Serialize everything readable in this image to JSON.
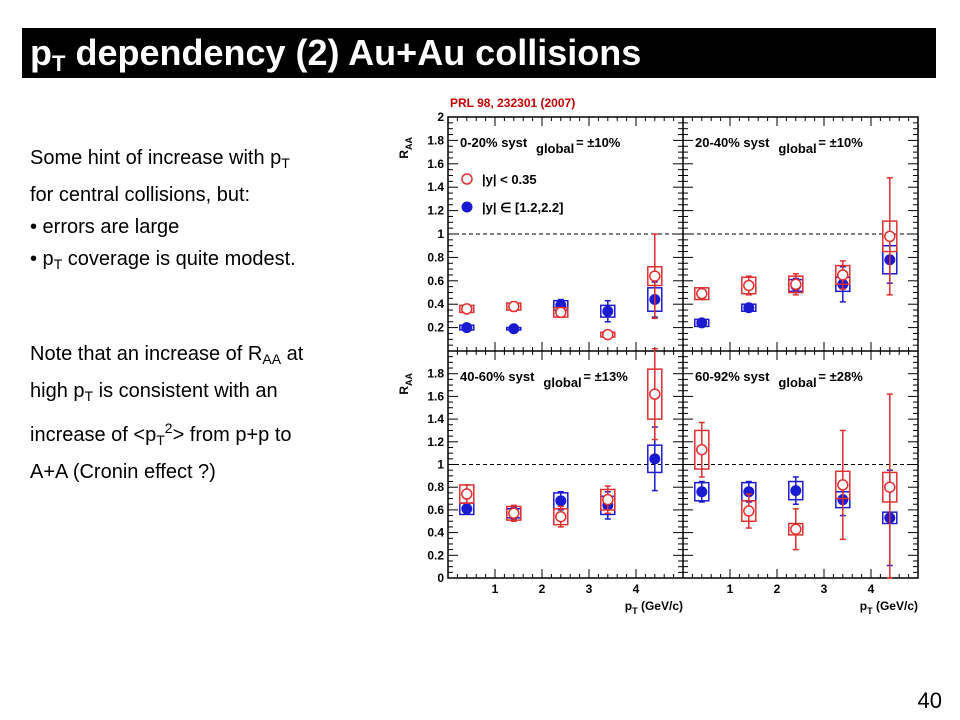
{
  "slide": {
    "title_main": "p",
    "title_sub": "T",
    "title_rest": " dependency (2) Au+Au collisions",
    "page_number": "40",
    "reference": "PRL 98, 232301 (2007)"
  },
  "text1": {
    "l1a": "Some hint of increase with p",
    "l1s": "T",
    "l2": "for central collisions, but:",
    "l3": "• errors are large",
    "l4a": "• p",
    "l4s": "T",
    "l4b": " coverage is quite modest."
  },
  "text2": {
    "l1a": "Note that an increase of R",
    "l1s": "AA",
    "l1b": " at",
    "l2a": "high p",
    "l2s": "T",
    "l2b": " is consistent with an",
    "l3a": "increase of <p",
    "l3s": "T",
    "l3p": "2",
    "l3b": "> from p+p to",
    "l4": "A+A (Cronin effect ?)"
  },
  "chart_data": {
    "type": "scatter",
    "ylabel_main": "R",
    "ylabel_sub": "AA",
    "xlabel_main": "p",
    "xlabel_sub": "T",
    "xlabel_rest": " (GeV/c)",
    "x_ticks": [
      "1",
      "2",
      "3",
      "4"
    ],
    "y_ticks_top": [
      "0.2",
      "0.4",
      "0.6",
      "0.8",
      "1",
      "1.2",
      "1.4",
      "1.6",
      "1.8",
      "2"
    ],
    "y_ticks_bottom": [
      "0",
      "0.2",
      "0.4",
      "0.6",
      "0.8",
      "1",
      "1.2",
      "1.4",
      "1.6",
      "1.8"
    ],
    "xlim": [
      0,
      5
    ],
    "ylim": [
      0,
      2.0
    ],
    "reference_line": 1,
    "legend": {
      "open": "|y| < 0.35",
      "filled": "|y| ∈ [1.2,2.2]"
    },
    "colors": {
      "open": "#e03030",
      "filled": "#1a1ad0",
      "frame": "#000000"
    },
    "panels": [
      {
        "label_a": "0-20% syst",
        "label_sub": "global",
        "label_b": "= ±10%",
        "show_legend": true,
        "open": [
          {
            "x": 0.4,
            "y": 0.36,
            "err": 0.03,
            "sys": 0.03
          },
          {
            "x": 1.4,
            "y": 0.38,
            "err": 0.04,
            "sys": 0.03
          },
          {
            "x": 2.4,
            "y": 0.33,
            "err": 0.04,
            "sys": 0.04
          },
          {
            "x": 3.4,
            "y": 0.14,
            "err": 0.03,
            "sys": 0.02
          },
          {
            "x": 4.4,
            "y": 0.64,
            "err": 0.36,
            "sys": 0.08
          }
        ],
        "filled": [
          {
            "x": 0.4,
            "y": 0.2,
            "err": 0.03,
            "sys": 0.02
          },
          {
            "x": 1.4,
            "y": 0.19,
            "err": 0.01,
            "sys": 0.01
          },
          {
            "x": 2.4,
            "y": 0.39,
            "err": 0.05,
            "sys": 0.04
          },
          {
            "x": 3.4,
            "y": 0.34,
            "err": 0.09,
            "sys": 0.05
          },
          {
            "x": 4.4,
            "y": 0.44,
            "err": 0.15,
            "sys": 0.1
          }
        ]
      },
      {
        "label_a": "20-40% syst",
        "label_sub": "global",
        "label_b": "= ±10%",
        "show_legend": false,
        "open": [
          {
            "x": 0.4,
            "y": 0.49,
            "err": 0.05,
            "sys": 0.05
          },
          {
            "x": 1.4,
            "y": 0.56,
            "err": 0.08,
            "sys": 0.07
          },
          {
            "x": 2.4,
            "y": 0.57,
            "err": 0.09,
            "sys": 0.07
          },
          {
            "x": 3.4,
            "y": 0.65,
            "err": 0.12,
            "sys": 0.08
          },
          {
            "x": 4.4,
            "y": 0.98,
            "err": 0.5,
            "sys": 0.13
          }
        ],
        "filled": [
          {
            "x": 0.4,
            "y": 0.24,
            "err": 0.03,
            "sys": 0.03
          },
          {
            "x": 1.4,
            "y": 0.37,
            "err": 0.02,
            "sys": 0.03
          },
          {
            "x": 2.4,
            "y": 0.56,
            "err": 0.06,
            "sys": 0.05
          },
          {
            "x": 3.4,
            "y": 0.57,
            "err": 0.15,
            "sys": 0.06
          },
          {
            "x": 4.4,
            "y": 0.78,
            "err": 0.2,
            "sys": 0.12
          }
        ]
      },
      {
        "label_a": "40-60% syst",
        "label_sub": "global",
        "label_b": "= ±13%",
        "show_legend": false,
        "open": [
          {
            "x": 0.4,
            "y": 0.74,
            "err": 0.08,
            "sys": 0.08
          },
          {
            "x": 1.4,
            "y": 0.57,
            "err": 0.07,
            "sys": 0.06
          },
          {
            "x": 2.4,
            "y": 0.54,
            "err": 0.09,
            "sys": 0.07
          },
          {
            "x": 3.4,
            "y": 0.69,
            "err": 0.12,
            "sys": 0.09
          },
          {
            "x": 4.4,
            "y": 1.62,
            "err": 0.4,
            "sys": 0.22
          }
        ],
        "filled": [
          {
            "x": 0.4,
            "y": 0.61,
            "err": 0.04,
            "sys": 0.05
          },
          {
            "x": 1.4,
            "y": 0.57,
            "err": 0.05,
            "sys": 0.04
          },
          {
            "x": 2.4,
            "y": 0.68,
            "err": 0.08,
            "sys": 0.07
          },
          {
            "x": 3.4,
            "y": 0.64,
            "err": 0.12,
            "sys": 0.08
          },
          {
            "x": 4.4,
            "y": 1.05,
            "err": 0.28,
            "sys": 0.12
          }
        ]
      },
      {
        "label_a": "60-92% syst",
        "label_sub": "global",
        "label_b": "= ±28%",
        "show_legend": false,
        "open": [
          {
            "x": 0.4,
            "y": 1.13,
            "err": 0.24,
            "sys": 0.17
          },
          {
            "x": 1.4,
            "y": 0.59,
            "err": 0.15,
            "sys": 0.09
          },
          {
            "x": 2.4,
            "y": 0.43,
            "err": 0.18,
            "sys": 0.05
          },
          {
            "x": 3.4,
            "y": 0.82,
            "err": 0.48,
            "sys": 0.12
          },
          {
            "x": 4.4,
            "y": 0.8,
            "err": 0.82,
            "sys": 0.13
          }
        ],
        "filled": [
          {
            "x": 0.4,
            "y": 0.76,
            "err": 0.09,
            "sys": 0.08
          },
          {
            "x": 1.4,
            "y": 0.76,
            "err": 0.09,
            "sys": 0.08
          },
          {
            "x": 2.4,
            "y": 0.77,
            "err": 0.12,
            "sys": 0.08
          },
          {
            "x": 3.4,
            "y": 0.69,
            "err": 0.14,
            "sys": 0.07
          },
          {
            "x": 4.4,
            "y": 0.53,
            "err": 0.42,
            "sys": 0.05
          }
        ]
      }
    ]
  }
}
